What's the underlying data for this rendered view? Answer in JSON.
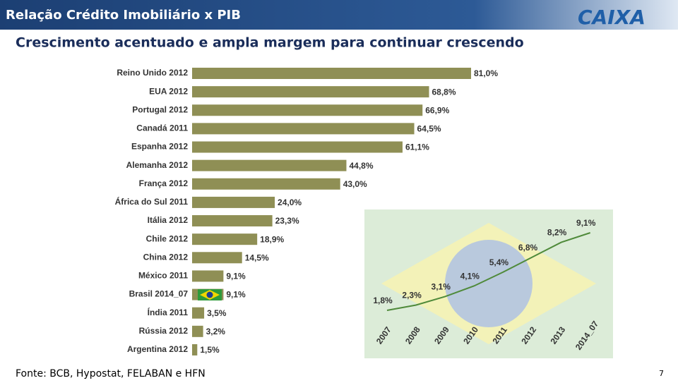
{
  "header": {
    "title": "Relação Crédito Imobiliário x PIB",
    "logo": "CAIXA"
  },
  "subtitle": "Crescimento acentuado e ampla margem para continuar crescendo",
  "chart_data": [
    {
      "type": "bar",
      "orientation": "horizontal",
      "color": "#8f8f55",
      "categories": [
        "Reino Unido 2012",
        "EUA 2012",
        "Portugal 2012",
        "Canadá 2011",
        "Espanha 2012",
        "Alemanha 2012",
        "França 2012",
        "África do Sul 2011",
        "Itália 2012",
        "Chile 2012",
        "China 2012",
        "México 2011",
        "Brasil 2014_07",
        "Índia 2011",
        "Rússia 2012",
        "Argentina 2012"
      ],
      "values": [
        81.0,
        68.8,
        66.9,
        64.5,
        61.1,
        44.8,
        43.0,
        24.0,
        23.3,
        18.9,
        14.5,
        9.1,
        9.1,
        3.5,
        3.2,
        1.5
      ],
      "value_labels": [
        "81,0%",
        "68,8%",
        "66,9%",
        "64,5%",
        "61,1%",
        "44,8%",
        "43,0%",
        "24,0%",
        "23,3%",
        "18,9%",
        "14,5%",
        "9,1%",
        "9,1%",
        "3,5%",
        "3,2%",
        "1,5%"
      ]
    },
    {
      "type": "line",
      "color": "#4f8a3a",
      "categories": [
        "2007",
        "2008",
        "2009",
        "2010",
        "2011",
        "2012",
        "2013",
        "2014_07"
      ],
      "values": [
        1.8,
        2.3,
        3.1,
        4.1,
        5.4,
        6.8,
        8.2,
        9.1
      ],
      "value_labels": [
        "1,8%",
        "2,3%",
        "3,1%",
        "4,1%",
        "5,4%",
        "6,8%",
        "8,2%",
        "9,1%"
      ]
    }
  ],
  "footer": {
    "source": "Fonte: BCB, Hypostat, FELABAN e HFN",
    "page": 7
  }
}
